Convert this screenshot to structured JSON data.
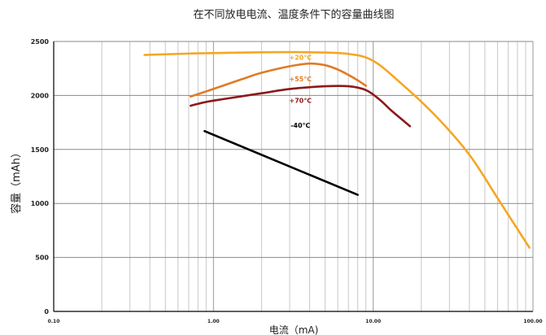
{
  "chart_data": {
    "type": "line",
    "title": "在不同放电电流、温度条件下的容量曲线图",
    "xlabel": "电流（mA)",
    "ylabel": "容量（mAh）",
    "x_scale": "log",
    "xlim": [
      0.1,
      100
    ],
    "ylim": [
      0,
      2500
    ],
    "xticks": [
      0.1,
      1,
      10,
      100
    ],
    "xtick_labels": [
      "0.10",
      "1.00",
      "10.00",
      "100.00"
    ],
    "yticks": [
      0,
      500,
      1000,
      1500,
      2000,
      2500
    ],
    "ytick_labels": [
      "0",
      "500",
      "1000",
      "1500",
      "2000",
      "2500"
    ],
    "grid": true,
    "legend": "inline labels",
    "series": [
      {
        "name": "+20℃",
        "color": "#f5a623",
        "x": [
          0.37,
          0.8,
          2.0,
          4.0,
          7.0,
          10.0,
          15.0,
          25.0,
          40.0,
          60.0,
          95.0
        ],
        "y": [
          2375,
          2390,
          2400,
          2400,
          2385,
          2320,
          2110,
          1800,
          1450,
          1050,
          590
        ]
      },
      {
        "name": "+55℃",
        "color": "#e07b26",
        "x": [
          0.72,
          1.0,
          1.5,
          2.0,
          3.0,
          4.0,
          5.0,
          6.0,
          7.0,
          8.0,
          9.0
        ],
        "y": [
          1990,
          2060,
          2150,
          2210,
          2270,
          2295,
          2280,
          2240,
          2190,
          2140,
          2090
        ]
      },
      {
        "name": "+70℃",
        "color": "#8b1a1a",
        "x": [
          0.72,
          0.9,
          1.2,
          2.0,
          3.0,
          5.0,
          7.0,
          9.0,
          11.0,
          13.0,
          17.0
        ],
        "y": [
          1905,
          1940,
          1970,
          2020,
          2060,
          2085,
          2085,
          2050,
          1960,
          1860,
          1715
        ]
      },
      {
        "name": "-40℃",
        "color": "#000000",
        "x": [
          0.88,
          8.0
        ],
        "y": [
          1670,
          1080
        ]
      }
    ],
    "annotations": [
      {
        "text": "+20℃",
        "x": 3.5,
        "y": 2330,
        "color": "#f5a623"
      },
      {
        "text": "+55℃",
        "x": 3.5,
        "y": 2130,
        "color": "#e07b26"
      },
      {
        "text": "+70℃",
        "x": 3.5,
        "y": 1930,
        "color": "#8b1a1a"
      },
      {
        "text": "-40℃",
        "x": 3.5,
        "y": 1700,
        "color": "#000000"
      }
    ]
  }
}
